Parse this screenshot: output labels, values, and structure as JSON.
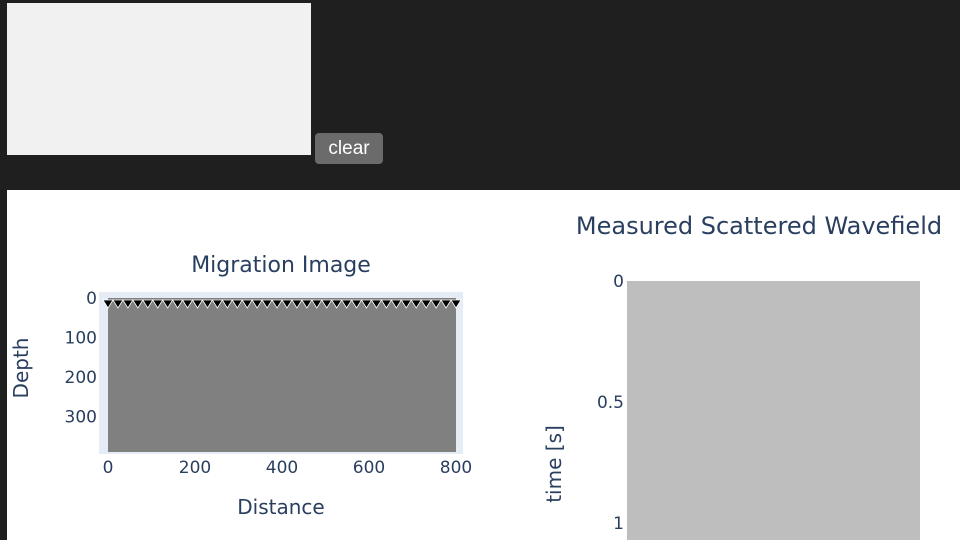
{
  "controls": {
    "clear_label": "clear"
  },
  "colors": {
    "background": "#1f1f1f",
    "canvas": "#f1f1f1",
    "button": "#6b6b6b",
    "plot_bg": "#e5ecf6",
    "migration_image": "#808080",
    "wavefield_image": "#bebebe",
    "text": "#2a3f5f"
  },
  "chart_data": [
    {
      "type": "heatmap",
      "title": "Migration Image",
      "xlabel": "Distance",
      "ylabel": "Depth",
      "xlim": [
        0,
        800
      ],
      "ylim": [
        390,
        0
      ],
      "xticks": [
        0,
        200,
        400,
        600,
        800
      ],
      "yticks": [
        0,
        100,
        200,
        300
      ],
      "markers": {
        "symbol": "triangle-down",
        "count": 36,
        "y": 0,
        "x_range": [
          0,
          800
        ]
      }
    },
    {
      "type": "heatmap",
      "title": "Measured Scattered Wavefield",
      "ylabel": "time [s]",
      "ylim": [
        1,
        0
      ],
      "yticks": [
        "0",
        "0.5",
        "1"
      ]
    }
  ]
}
